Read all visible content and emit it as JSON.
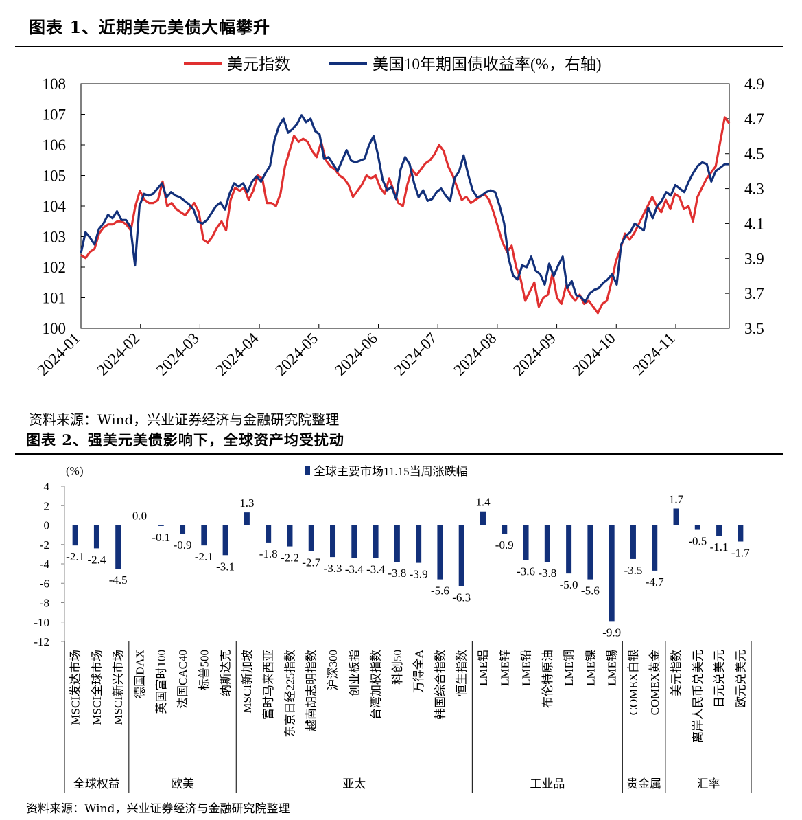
{
  "chart1": {
    "title": "图表 1、近期美元美债大幅攀升",
    "source": "资料来源：Wind，兴业证券经济与金融研究院整理",
    "chart_data": {
      "type": "line",
      "title": "近期美元美债大幅攀升",
      "x_labels": [
        "2024-01",
        "2024-02",
        "2024-03",
        "2024-04",
        "2024-05",
        "2024-06",
        "2024-07",
        "2024-08",
        "2024-09",
        "2024-10",
        "2024-11"
      ],
      "y_left": {
        "min": 100,
        "max": 108,
        "ticks": [
          "100",
          "101",
          "102",
          "103",
          "104",
          "105",
          "106",
          "107",
          "108"
        ]
      },
      "y_right": {
        "min": 3.5,
        "max": 4.9,
        "ticks": [
          "3.5",
          "3.7",
          "3.9",
          "4.1",
          "4.3",
          "4.5",
          "4.7",
          "4.9"
        ]
      },
      "series": [
        {
          "name": "美元指数",
          "axis": "left",
          "color": "#e03030",
          "values": [
            102.4,
            102.3,
            102.5,
            102.6,
            103.1,
            103.3,
            103.4,
            103.4,
            103.5,
            103.5,
            103.4,
            103.2,
            104.0,
            104.5,
            104.2,
            104.1,
            104.1,
            104.2,
            104.8,
            104.0,
            104.1,
            103.9,
            103.8,
            103.7,
            103.9,
            104.1,
            103.8,
            102.9,
            102.8,
            103.0,
            103.3,
            103.5,
            103.2,
            104.2,
            104.6,
            104.5,
            104.6,
            104.2,
            104.5,
            105.0,
            104.9,
            104.1,
            104.1,
            104.0,
            104.4,
            105.3,
            105.8,
            106.3,
            106.1,
            106.2,
            106.1,
            105.8,
            105.6,
            106.1,
            105.5,
            105.3,
            105.2,
            105.0,
            104.9,
            104.7,
            104.3,
            104.5,
            104.7,
            105.0,
            104.9,
            105.0,
            104.6,
            104.4,
            104.9,
            104.5,
            104.1,
            104.0,
            104.7,
            105.2,
            105.0,
            105.2,
            105.4,
            105.5,
            105.7,
            106.0,
            105.8,
            105.3,
            105.0,
            104.6,
            104.2,
            104.3,
            104.1,
            104.2,
            104.3,
            104.4,
            104.2,
            103.8,
            103.3,
            102.8,
            102.5,
            102.7,
            102.0,
            101.6,
            100.9,
            101.2,
            101.5,
            100.7,
            101.0,
            101.1,
            101.8,
            101.0,
            100.8,
            101.4,
            101.1,
            100.9,
            101.1,
            100.8,
            100.9,
            100.7,
            100.5,
            100.8,
            100.9,
            101.5,
            102.2,
            102.6,
            103.1,
            102.9,
            103.1,
            103.4,
            103.7,
            104.0,
            104.3,
            104.0,
            103.8,
            104.2,
            103.9,
            104.4,
            104.3,
            103.9,
            104.0,
            103.5,
            104.3,
            104.6,
            104.9,
            105.1,
            105.3,
            106.1,
            106.9,
            106.7
          ]
        },
        {
          "name": "美国10年期国债收益率(%，右轴)",
          "axis": "right",
          "color": "#12307a",
          "values": [
            3.93,
            4.05,
            4.02,
            3.98,
            4.07,
            4.1,
            4.15,
            4.13,
            4.17,
            4.12,
            4.12,
            4.08,
            3.86,
            4.2,
            4.27,
            4.26,
            4.27,
            4.3,
            4.33,
            4.25,
            4.28,
            4.26,
            4.25,
            4.23,
            4.21,
            4.18,
            4.11,
            4.1,
            4.12,
            4.16,
            4.2,
            4.22,
            4.18,
            4.27,
            4.33,
            4.31,
            4.33,
            4.28,
            4.34,
            4.37,
            4.34,
            4.39,
            4.43,
            4.58,
            4.66,
            4.7,
            4.62,
            4.64,
            4.67,
            4.72,
            4.68,
            4.7,
            4.63,
            4.61,
            4.47,
            4.48,
            4.44,
            4.4,
            4.46,
            4.52,
            4.46,
            4.45,
            4.46,
            4.47,
            4.55,
            4.6,
            4.49,
            4.35,
            4.29,
            4.31,
            4.24,
            4.41,
            4.48,
            4.44,
            4.33,
            4.25,
            4.29,
            4.23,
            4.24,
            4.28,
            4.3,
            4.26,
            4.23,
            4.36,
            4.4,
            4.49,
            4.38,
            4.29,
            4.25,
            4.26,
            4.28,
            4.29,
            4.28,
            4.2,
            4.1,
            3.9,
            3.8,
            3.78,
            3.86,
            3.85,
            3.91,
            3.83,
            3.81,
            3.75,
            3.87,
            3.8,
            3.86,
            3.91,
            3.73,
            3.77,
            3.69,
            3.68,
            3.65,
            3.7,
            3.72,
            3.73,
            3.76,
            3.78,
            3.81,
            3.75,
            3.98,
            4.03,
            4.05,
            4.1,
            4.08,
            4.06,
            4.19,
            4.13,
            4.2,
            4.23,
            4.28,
            4.26,
            4.32,
            4.3,
            4.28,
            4.34,
            4.39,
            4.43,
            4.45,
            4.44,
            4.34,
            4.4,
            4.42,
            4.44,
            4.44
          ]
        }
      ]
    }
  },
  "chart2": {
    "title": "图表 2、强美元美债影响下，全球资产均受扰动",
    "source": "资料来源：Wind，兴业证券经济与金融研究院整理",
    "chart_data": {
      "type": "bar",
      "unit_label": "(%)",
      "legend": "全球主要市场11.15当周涨跌幅",
      "color": "#12307a",
      "ylim": [
        -12,
        4
      ],
      "y_ticks": [
        "4",
        "2",
        "0",
        "-2",
        "-4",
        "-6",
        "-8",
        "-10",
        "-12"
      ],
      "groups": [
        {
          "name": "全球权益",
          "items": [
            {
              "label": "MSCI发达市场",
              "value": -2.1,
              "text": "-2.1"
            },
            {
              "label": "MSCI全球市场",
              "value": -2.4,
              "text": "-2.4"
            },
            {
              "label": "MSCI新兴市场",
              "value": -4.5,
              "text": "-4.5"
            }
          ]
        },
        {
          "name": "欧美",
          "items": [
            {
              "label": "德国DAX",
              "value": 0.0,
              "text": "0.0"
            },
            {
              "label": "英国富时100",
              "value": -0.1,
              "text": "-0.1"
            },
            {
              "label": "法国CAC40",
              "value": -0.9,
              "text": "-0.9"
            },
            {
              "label": "标普500",
              "value": -2.1,
              "text": "-2.1"
            },
            {
              "label": "纳斯达克",
              "value": -3.1,
              "text": "-3.1"
            }
          ]
        },
        {
          "name": "亚太",
          "items": [
            {
              "label": "MSCI新加坡",
              "value": 1.3,
              "text": "1.3"
            },
            {
              "label": "富时马来西亚",
              "value": -1.8,
              "text": "-1.8"
            },
            {
              "label": "东京日经225指数",
              "value": -2.2,
              "text": "-2.2"
            },
            {
              "label": "越南胡志明指数",
              "value": -2.7,
              "text": "-2.7"
            },
            {
              "label": "沪深300",
              "value": -3.3,
              "text": "-3.3"
            },
            {
              "label": "创业板指",
              "value": -3.4,
              "text": "-3.4"
            },
            {
              "label": "台湾加权指数",
              "value": -3.4,
              "text": "-3.4"
            },
            {
              "label": "科创50",
              "value": -3.8,
              "text": "-3.8"
            },
            {
              "label": "万得全A",
              "value": -3.9,
              "text": "-3.9"
            },
            {
              "label": "韩国综合指数",
              "value": -5.6,
              "text": "-5.6"
            },
            {
              "label": "恒生指数",
              "value": -6.3,
              "text": "-6.3"
            }
          ]
        },
        {
          "name": "工业品",
          "items": [
            {
              "label": "LME铝",
              "value": 1.4,
              "text": "1.4"
            },
            {
              "label": "LME锌",
              "value": -0.9,
              "text": "-0.9"
            },
            {
              "label": "LME铅",
              "value": -3.6,
              "text": "-3.6"
            },
            {
              "label": "布伦特原油",
              "value": -3.8,
              "text": "-3.8"
            },
            {
              "label": "LME铜",
              "value": -5.0,
              "text": "-5.0"
            },
            {
              "label": "LME镍",
              "value": -5.6,
              "text": "-5.6"
            },
            {
              "label": "LME锡",
              "value": -9.9,
              "text": "-9.9"
            }
          ]
        },
        {
          "name": "贵金属",
          "items": [
            {
              "label": "COMEX白银",
              "value": -3.5,
              "text": "-3.5"
            },
            {
              "label": "COMEX黄金",
              "value": -4.7,
              "text": "-4.7"
            }
          ]
        },
        {
          "name": "汇率",
          "items": [
            {
              "label": "美元指数",
              "value": 1.7,
              "text": "1.7"
            },
            {
              "label": "离岸人民币兑美元",
              "value": -0.5,
              "text": "-0.5"
            },
            {
              "label": "日元兑美元",
              "value": -1.1,
              "text": "-1.1"
            },
            {
              "label": "欧元兑美元",
              "value": -1.7,
              "text": "-1.7"
            }
          ]
        }
      ]
    }
  }
}
